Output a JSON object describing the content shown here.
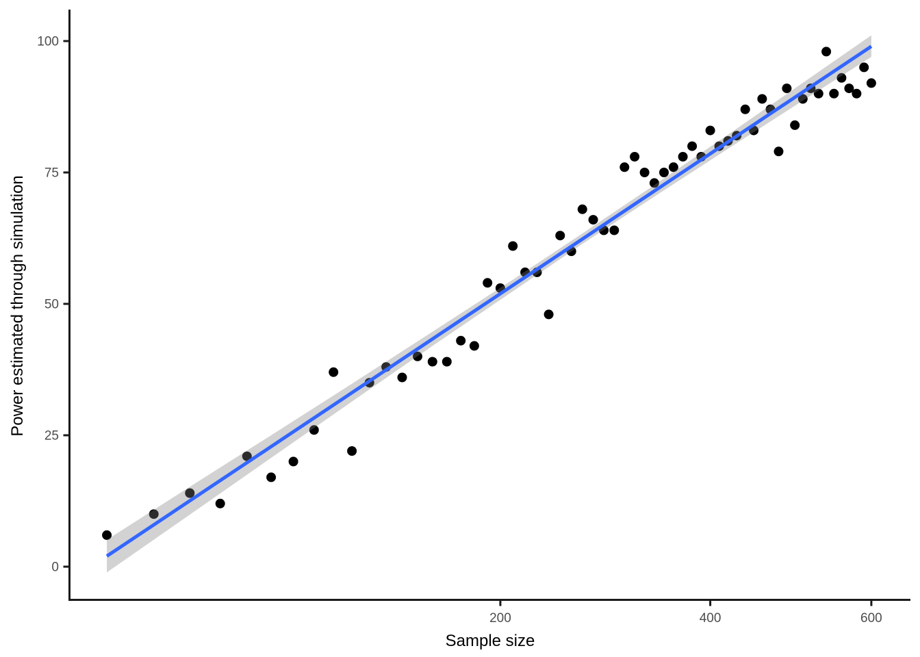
{
  "chart_data": {
    "type": "scatter",
    "title": "",
    "xlabel": "Sample size",
    "ylabel": "Power estimated through simulation",
    "x_scale": "sqrt",
    "grid": "off",
    "legend": "none",
    "x_ticks": [
      200,
      400,
      600
    ],
    "y_ticks": [
      0,
      25,
      50,
      75,
      100
    ],
    "xlim": [
      4,
      655
    ],
    "ylim": [
      -6,
      106
    ],
    "points": [
      [
        10,
        6
      ],
      [
        20,
        10
      ],
      [
        30,
        14
      ],
      [
        40,
        12
      ],
      [
        50,
        21
      ],
      [
        60,
        17
      ],
      [
        70,
        20
      ],
      [
        80,
        26
      ],
      [
        90,
        37
      ],
      [
        100,
        22
      ],
      [
        110,
        35
      ],
      [
        120,
        38
      ],
      [
        130,
        36
      ],
      [
        140,
        40
      ],
      [
        150,
        39
      ],
      [
        160,
        39
      ],
      [
        170,
        43
      ],
      [
        180,
        42
      ],
      [
        190,
        54
      ],
      [
        200,
        53
      ],
      [
        210,
        61
      ],
      [
        220,
        56
      ],
      [
        230,
        56
      ],
      [
        240,
        48
      ],
      [
        250,
        63
      ],
      [
        260,
        60
      ],
      [
        270,
        68
      ],
      [
        280,
        66
      ],
      [
        290,
        64
      ],
      [
        300,
        64
      ],
      [
        310,
        76
      ],
      [
        320,
        78
      ],
      [
        330,
        75
      ],
      [
        340,
        73
      ],
      [
        350,
        75
      ],
      [
        360,
        76
      ],
      [
        370,
        78
      ],
      [
        380,
        80
      ],
      [
        390,
        78
      ],
      [
        400,
        83
      ],
      [
        410,
        80
      ],
      [
        420,
        81
      ],
      [
        430,
        82
      ],
      [
        440,
        87
      ],
      [
        450,
        83
      ],
      [
        460,
        89
      ],
      [
        470,
        87
      ],
      [
        480,
        79
      ],
      [
        490,
        91
      ],
      [
        500,
        84
      ],
      [
        510,
        89
      ],
      [
        520,
        91
      ],
      [
        530,
        90
      ],
      [
        540,
        98
      ],
      [
        550,
        90
      ],
      [
        560,
        93
      ],
      [
        570,
        91
      ],
      [
        580,
        90
      ],
      [
        590,
        95
      ],
      [
        600,
        92
      ]
    ],
    "smooth": {
      "line": [
        [
          10,
          2.0
        ],
        [
          600,
          99.0
        ]
      ],
      "band": [
        {
          "x": 10,
          "lo": -1.1,
          "hi": 5.1
        },
        {
          "x": 30,
          "lo": 9.9,
          "hi": 15.2
        },
        {
          "x": 60,
          "lo": 20.7,
          "hi": 25.0
        },
        {
          "x": 100,
          "lo": 31.4,
          "hi": 34.8
        },
        {
          "x": 150,
          "lo": 42.0,
          "hi": 44.7
        },
        {
          "x": 210,
          "lo": 52.4,
          "hi": 54.6
        },
        {
          "x": 270,
          "lo": 61.4,
          "hi": 63.4
        },
        {
          "x": 340,
          "lo": 70.4,
          "hi": 72.6
        },
        {
          "x": 420,
          "lo": 79.5,
          "hi": 82.2
        },
        {
          "x": 500,
          "lo": 87.7,
          "hi": 91.0
        },
        {
          "x": 600,
          "lo": 97.0,
          "hi": 101.1
        }
      ]
    },
    "colors": {
      "point": "#000000",
      "smooth_line": "#3366FF",
      "band": "rgba(125,125,125,0.35)",
      "axis": "#1A1A1A",
      "tick_label": "#4D4D4D",
      "axis_title": "#000000",
      "background": "#FFFFFF"
    }
  }
}
